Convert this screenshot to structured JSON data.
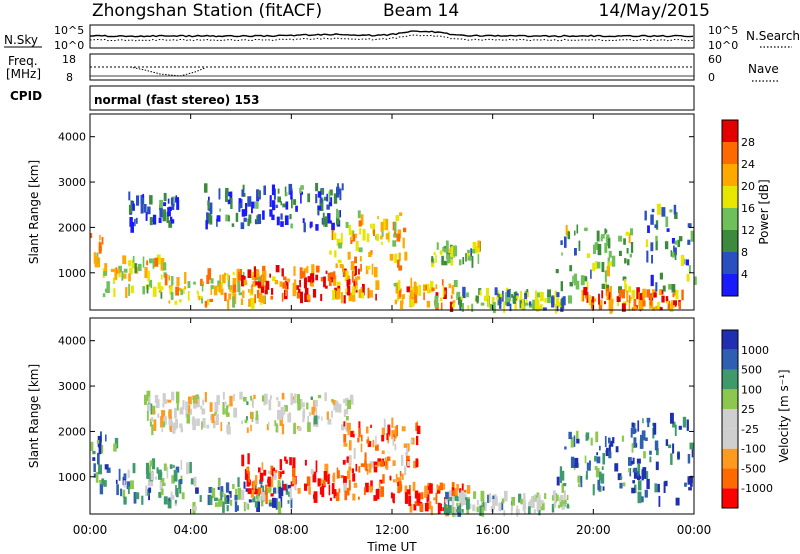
{
  "header": {
    "station": "Zhongshan Station (fitACF)",
    "beam": "Beam 14",
    "date": "14/May/2015"
  },
  "top_panels": {
    "nsky_label": "N.Sky",
    "nsearch_label": "N.Search",
    "freq_label_line1": "Freq.",
    "freq_label_line2": "[MHz]",
    "nave_label": "Nave",
    "cpid_label": "CPID",
    "cpid_value": "normal (fast stereo) 153",
    "noise_left_ticks": [
      "10^5",
      "10^0"
    ],
    "noise_right_ticks": [
      "10^5",
      "10^0"
    ],
    "freq_left_ticks": [
      "18",
      "8"
    ],
    "nave_right_ticks": [
      "60",
      "0"
    ]
  },
  "colors": {
    "power_scale": [
      "#1a1aff",
      "#2a50c0",
      "#3c8a3c",
      "#6fbf5a",
      "#e6e600",
      "#ffa800",
      "#ff6a00",
      "#e30000"
    ],
    "velocity_scale": [
      "#ff0000",
      "#ff6a00",
      "#ff9a20",
      "#cfcfcf",
      "#cfcfcf",
      "#8cc850",
      "#3e9a6a",
      "#2f5fb0",
      "#1f2fb0"
    ]
  },
  "chart_data": [
    {
      "type": "heatmap",
      "panel": "power",
      "xlabel": "",
      "ylabel": "Slant Range [km]",
      "xlim": [
        0,
        24
      ],
      "ylim": [
        180,
        4500
      ],
      "yticks": [
        1000,
        2000,
        3000,
        4000
      ],
      "colorbar_label": "Power [dB]",
      "colorbar_ticks": [
        "4",
        "8",
        "12",
        "16",
        "20",
        "24",
        "28"
      ],
      "colorbar_range": [
        0,
        32
      ],
      "bands": [
        {
          "t0": 0.0,
          "t1": 0.5,
          "r0": 900,
          "r1": 1900,
          "level": 22
        },
        {
          "t0": 0.5,
          "t1": 3.0,
          "r0": 500,
          "r1": 1300,
          "level": 18
        },
        {
          "t0": 1.5,
          "t1": 3.5,
          "r0": 2000,
          "r1": 2700,
          "level": 6
        },
        {
          "t0": 3.0,
          "t1": 7.0,
          "r0": 300,
          "r1": 1000,
          "level": 20
        },
        {
          "t0": 4.5,
          "t1": 10.0,
          "r0": 2000,
          "r1": 2900,
          "level": 6
        },
        {
          "t0": 6.0,
          "t1": 11.5,
          "r0": 400,
          "r1": 1100,
          "level": 26
        },
        {
          "t0": 9.5,
          "t1": 12.5,
          "r0": 1100,
          "r1": 2300,
          "level": 20
        },
        {
          "t0": 12.0,
          "t1": 14.5,
          "r0": 250,
          "r1": 800,
          "level": 22
        },
        {
          "t0": 13.5,
          "t1": 15.5,
          "r0": 1200,
          "r1": 1600,
          "level": 14
        },
        {
          "t0": 14.5,
          "t1": 19.0,
          "r0": 200,
          "r1": 600,
          "level": 12
        },
        {
          "t0": 18.5,
          "t1": 21.5,
          "r0": 600,
          "r1": 2000,
          "level": 14
        },
        {
          "t0": 19.5,
          "t1": 23.5,
          "r0": 200,
          "r1": 600,
          "level": 24
        },
        {
          "t0": 22.0,
          "t1": 24.0,
          "r0": 600,
          "r1": 2400,
          "level": 10
        }
      ]
    },
    {
      "type": "heatmap",
      "panel": "velocity",
      "xlabel": "Time UT",
      "ylabel": "Slant Range [km]",
      "xlim": [
        0,
        24
      ],
      "ylim": [
        180,
        4500
      ],
      "xticks": [
        "00:00",
        "04:00",
        "08:00",
        "12:00",
        "16:00",
        "20:00",
        "00:00"
      ],
      "yticks": [
        1000,
        2000,
        3000,
        4000
      ],
      "colorbar_label": "Velocity [m s⁻¹]",
      "colorbar_ticks": [
        "1000",
        "500",
        "100",
        "25",
        "-25",
        "-100",
        "-500",
        "-1000"
      ],
      "bands": [
        {
          "t0": 0.0,
          "t1": 1.0,
          "r0": 700,
          "r1": 1900,
          "level": 0.8
        },
        {
          "t0": 1.0,
          "t1": 4.0,
          "r0": 400,
          "r1": 1300,
          "level": 0.7
        },
        {
          "t0": 2.0,
          "t1": 10.5,
          "r0": 2000,
          "r1": 2800,
          "level": 0.45
        },
        {
          "t0": 4.0,
          "t1": 8.0,
          "r0": 300,
          "r1": 900,
          "level": 0.75
        },
        {
          "t0": 6.0,
          "t1": 12.5,
          "r0": 500,
          "r1": 1400,
          "level": 0.15
        },
        {
          "t0": 10.0,
          "t1": 13.0,
          "r0": 1200,
          "r1": 2200,
          "level": 0.2
        },
        {
          "t0": 12.5,
          "t1": 15.0,
          "r0": 250,
          "r1": 800,
          "level": 0.1
        },
        {
          "t0": 14.0,
          "t1": 19.0,
          "r0": 200,
          "r1": 600,
          "level": 0.6
        },
        {
          "t0": 18.5,
          "t1": 22.0,
          "r0": 700,
          "r1": 2000,
          "level": 0.8
        },
        {
          "t0": 21.5,
          "t1": 24.0,
          "r0": 400,
          "r1": 2300,
          "level": 0.85
        }
      ]
    }
  ]
}
